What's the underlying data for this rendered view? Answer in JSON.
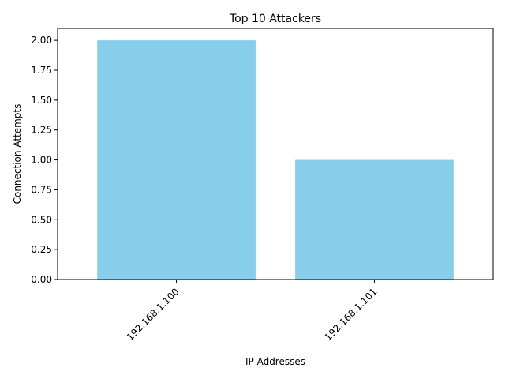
{
  "chart_data": {
    "type": "bar",
    "title": "Top 10 Attackers",
    "xlabel": "IP Addresses",
    "ylabel": "Connection Attempts",
    "categories": [
      "192.168.1.100",
      "192.168.1.101"
    ],
    "values": [
      2,
      1
    ],
    "ylim": [
      0,
      2.1
    ],
    "yticks": [
      "0.00",
      "0.25",
      "0.50",
      "0.75",
      "1.00",
      "1.25",
      "1.50",
      "1.75",
      "2.00"
    ],
    "bar_color": "#87ceeb",
    "grid": false,
    "legend": "none"
  }
}
